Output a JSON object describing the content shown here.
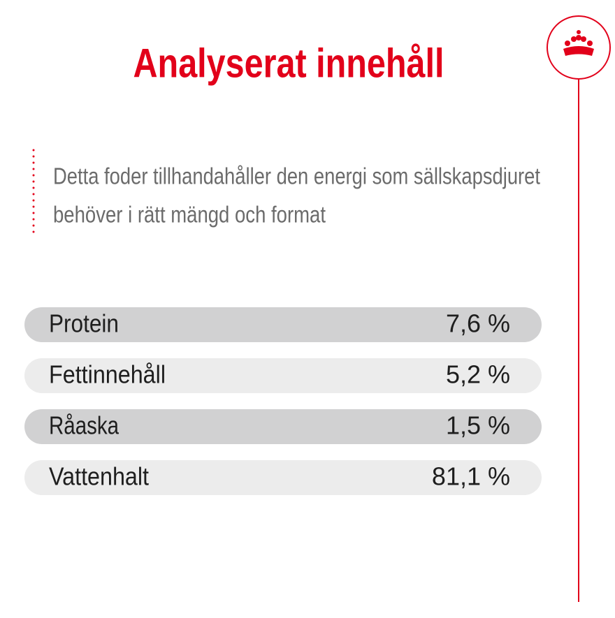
{
  "title": "Analyserat innehåll",
  "description": [
    "Detta foder tillhandahåller den energi som sällskapsdjuret",
    "behöver i rätt mängd och format"
  ],
  "table": {
    "rows": [
      [
        "Protein",
        "7,6 %"
      ],
      [
        "Fettinnehåll",
        "5,2 %"
      ],
      [
        "Råaska",
        "1,5 %"
      ],
      [
        "Vattenhalt",
        "81,1 %"
      ]
    ]
  }
}
